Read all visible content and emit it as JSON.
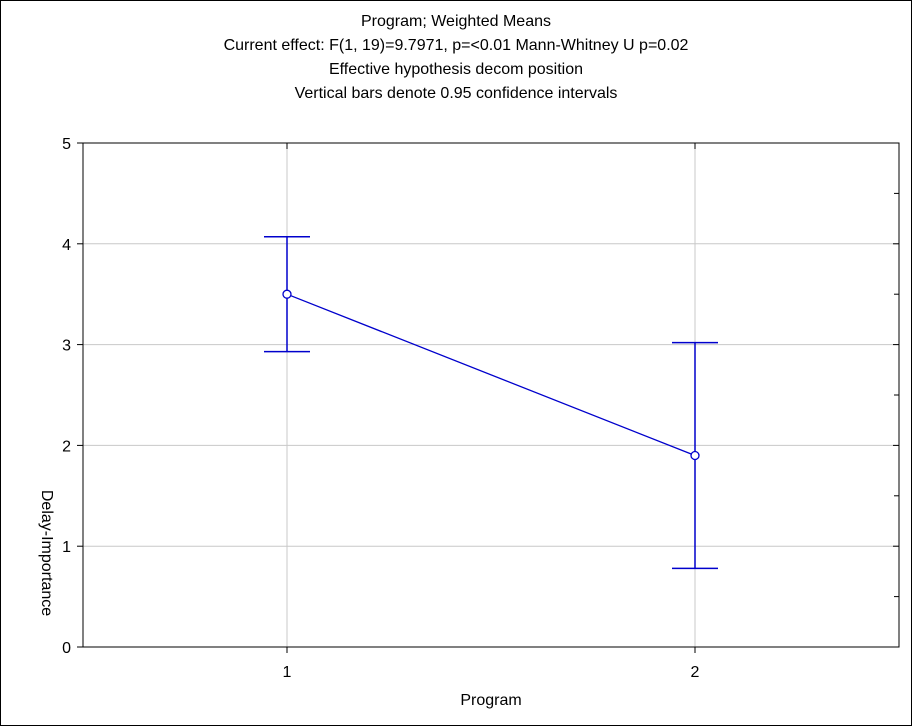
{
  "chart_data": {
    "type": "line",
    "title_lines": [
      "Program; Weighted Means",
      "Current effect: F(1, 19)=9.7971, p=<0.01 Mann-Whitney U p=0.02",
      "Effective hypothesis decom position",
      "Vertical bars denote 0.95 confidence intervals"
    ],
    "xlabel": "Program",
    "ylabel": "Delay-Importance",
    "categories": [
      "1",
      "2"
    ],
    "y_ticks": [
      "0",
      "1",
      "2",
      "3",
      "4",
      "5"
    ],
    "ylim": [
      0,
      5
    ],
    "grid": true,
    "series": [
      {
        "values": [
          3.5,
          1.9
        ],
        "ci_lower": [
          2.93,
          0.78
        ],
        "ci_upper": [
          4.07,
          3.02
        ],
        "color": "#0000cc"
      }
    ]
  }
}
